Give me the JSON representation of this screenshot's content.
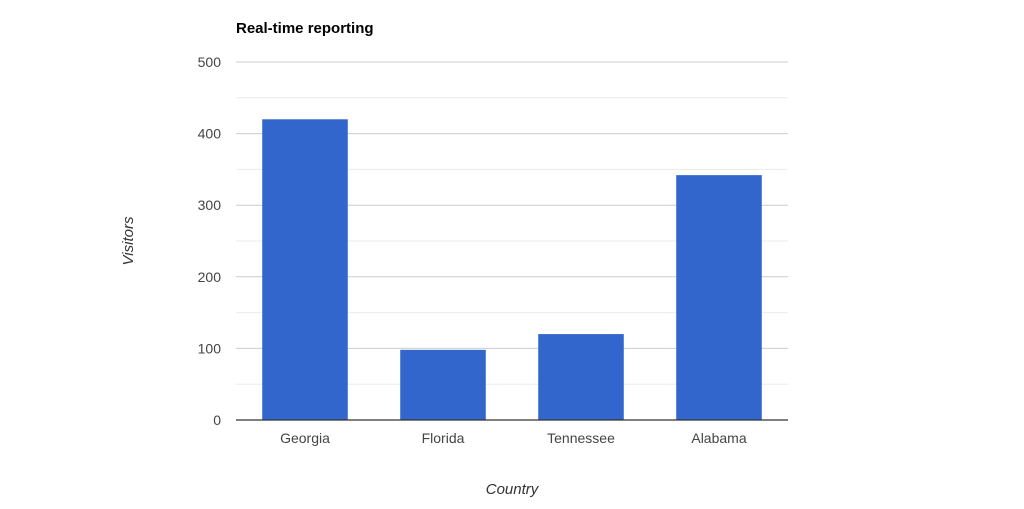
{
  "chart_data": {
    "type": "bar",
    "title": "Real-time reporting",
    "xlabel": "Country",
    "ylabel": "Visitors",
    "categories": [
      "Georgia",
      "Florida",
      "Tennessee",
      "Alabama"
    ],
    "values": [
      420,
      98,
      120,
      342
    ],
    "ylim": [
      0,
      500
    ],
    "yticks": [
      "0",
      "100",
      "200",
      "300",
      "400",
      "500"
    ],
    "grid": true,
    "legend": "none",
    "bar_color": "#3366cc",
    "gridline_color": "#cccccc",
    "minor_gridline_color": "#ebebeb"
  }
}
